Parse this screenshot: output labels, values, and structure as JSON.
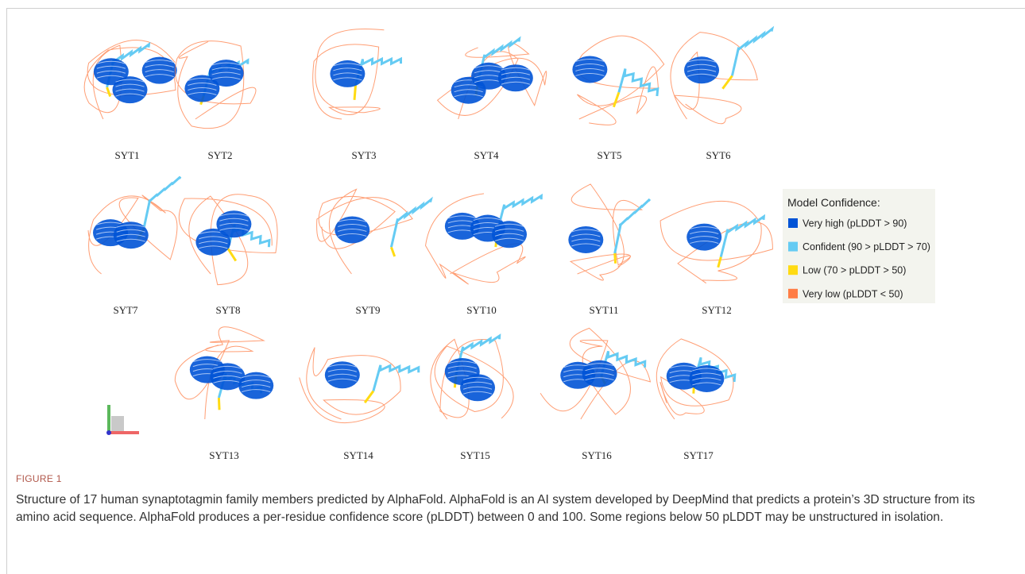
{
  "figure": {
    "structures": [
      {
        "label": "SYT1"
      },
      {
        "label": "SYT2"
      },
      {
        "label": "SYT3"
      },
      {
        "label": "SYT4"
      },
      {
        "label": "SYT5"
      },
      {
        "label": "SYT6"
      },
      {
        "label": "SYT7"
      },
      {
        "label": "SYT8"
      },
      {
        "label": "SYT9"
      },
      {
        "label": "SYT10"
      },
      {
        "label": "SYT11"
      },
      {
        "label": "SYT12"
      },
      {
        "label": "SYT13"
      },
      {
        "label": "SYT14"
      },
      {
        "label": "SYT15"
      },
      {
        "label": "SYT16"
      },
      {
        "label": "SYT17"
      }
    ],
    "legend": {
      "title": "Model Confidence:",
      "items": [
        {
          "label": "Very high (pLDDT > 90)",
          "color": "#0053d6"
        },
        {
          "label": "Confident (90 > pLDDT > 70)",
          "color": "#65cbf3"
        },
        {
          "label": "Low (70 > pLDDT > 50)",
          "color": "#ffdb13"
        },
        {
          "label": "Very low (pLDDT < 50)",
          "color": "#ff7d45"
        }
      ]
    },
    "caption": {
      "label": "FIGURE 1",
      "text": "Structure of 17 human synaptotagmin family members predicted by AlphaFold. AlphaFold is an AI system developed by DeepMind that predicts a protein’s 3D structure from its amino acid sequence. AlphaFold produces a per-residue confidence score (pLDDT) between 0 and 100. Some regions below 50 pLDDT may be unstructured in isolation."
    }
  }
}
